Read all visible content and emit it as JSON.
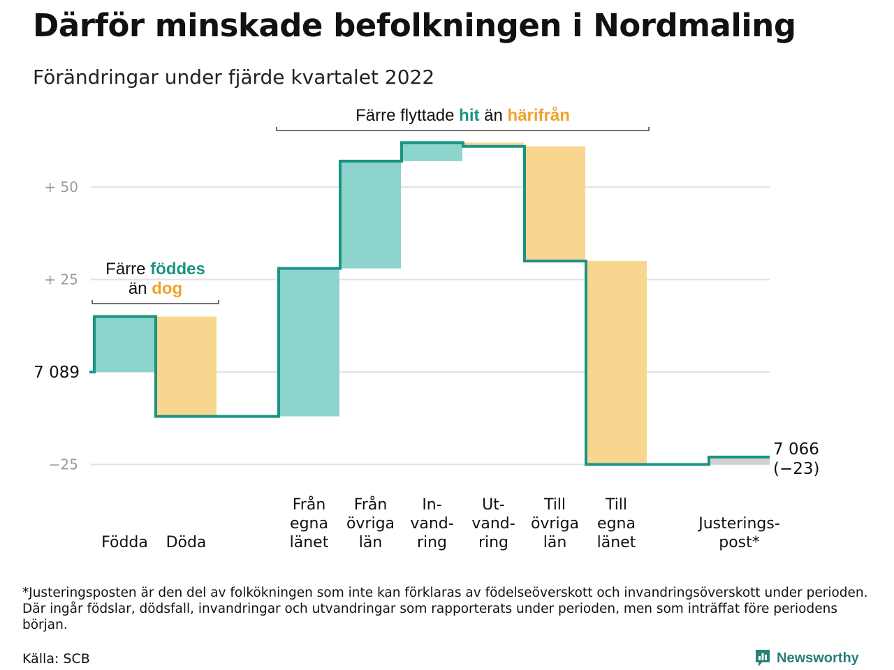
{
  "title": "Därför minskade befolkningen i Nordmaling",
  "subtitle": "Förändringar under fjärde kvartalet 2022",
  "footnote": "*Justeringsposten är den del av folkökningen som inte kan förklaras av födelseöverskott och invandringsöverskott under perioden. Där ingår födslar, dödsfall, invandringar och utvandringar som rapporterats under perioden, men som inträffat före periodens början.",
  "source": "Källa: SCB",
  "brand": "Newsworthy",
  "colors": {
    "increase": "#8dd4cc",
    "decrease": "#f9d690",
    "adjustment": "#d0d0d0",
    "line": "#1a9484",
    "grid": "#e2e2e2",
    "axis_text": "#9a9a9a",
    "accent_teal": "#1a9484",
    "accent_orange": "#f0a229"
  },
  "chart_data": {
    "type": "waterfall",
    "start": {
      "value": 7089,
      "label": "7 089"
    },
    "end": {
      "value": 7066,
      "label": "7 066",
      "change_label": "(−23)"
    },
    "y_ticks": [
      {
        "value": 50,
        "label": "+ 50"
      },
      {
        "value": 25,
        "label": "+ 25"
      },
      {
        "value": -25,
        "label": "−25"
      }
    ],
    "ylim": [
      -25,
      62
    ],
    "bars": [
      {
        "label_lines": [
          "",
          "",
          "Födda"
        ],
        "change": 15,
        "kind": "increase",
        "slot": 0
      },
      {
        "label_lines": [
          "",
          "",
          "Döda"
        ],
        "change": -27,
        "kind": "decrease",
        "slot": 1
      },
      {
        "label_lines": [
          "Från",
          "egna",
          "länet"
        ],
        "change": 40,
        "kind": "increase",
        "slot": 3
      },
      {
        "label_lines": [
          "Från",
          "övriga",
          "län"
        ],
        "change": 29,
        "kind": "increase",
        "slot": 4
      },
      {
        "label_lines": [
          "In-",
          "vand-",
          "ring"
        ],
        "change": 5,
        "kind": "increase",
        "slot": 5
      },
      {
        "label_lines": [
          "Ut-",
          "vand-",
          "ring"
        ],
        "change": -1,
        "kind": "decrease",
        "slot": 6
      },
      {
        "label_lines": [
          "Till",
          "övriga",
          "län"
        ],
        "change": -31,
        "kind": "decrease",
        "slot": 7
      },
      {
        "label_lines": [
          "Till",
          "egna",
          "länet"
        ],
        "change": -55,
        "kind": "decrease",
        "slot": 8
      },
      {
        "label_lines": [
          "",
          "Justerings-",
          "post*"
        ],
        "change": 2,
        "kind": "adjustment",
        "slot": 10
      }
    ],
    "annotations": [
      {
        "lines": [
          [
            {
              "text": "Färre ",
              "color": "dark"
            },
            {
              "text": "föddes",
              "color": "teal"
            }
          ],
          [
            {
              "text": "än ",
              "color": "dark"
            },
            {
              "text": "dog",
              "color": "orange"
            }
          ]
        ],
        "from_slot": 0,
        "to_slot": 1
      },
      {
        "lines": [
          [
            {
              "text": "Färre flyttade ",
              "color": "dark"
            },
            {
              "text": "hit",
              "color": "teal"
            },
            {
              "text": " än ",
              "color": "dark"
            },
            {
              "text": "härifrån",
              "color": "orange"
            }
          ]
        ],
        "from_slot": 3,
        "to_slot": 8
      }
    ]
  }
}
